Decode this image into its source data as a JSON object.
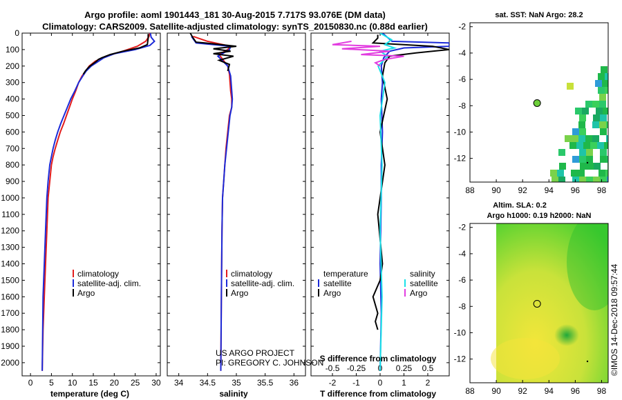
{
  "header": {
    "title_line1": "Argo profile: aoml 1901443_181 30-Aug-2015 7.717S 93.076E (DM data)",
    "title_line2": "Climatology: CARS2009. Satellite-adjusted climatology: synTS_20150830.nc (0.88d earlier)"
  },
  "credits": {
    "project": "US ARGO PROJECT",
    "pi": "PI: GREGORY C. JOHNSON",
    "stamp": "©IMOS 14-Dec-2018 09:57:44"
  },
  "colors": {
    "climatology": "#e21b1b",
    "satellite": "#1b2ad8",
    "argo": "#000000",
    "sal_satellite": "#19e0e8",
    "sal_argo": "#e23ce0"
  },
  "chart_data": [
    {
      "id": "temperature",
      "type": "line",
      "xlabel": "temperature (deg C)",
      "ylabel": "",
      "xlim": [
        -2,
        31
      ],
      "ylim": [
        2080,
        0
      ],
      "xticks": [
        0,
        5,
        10,
        15,
        20,
        25,
        30
      ],
      "yticks": [
        0,
        100,
        200,
        300,
        400,
        500,
        600,
        700,
        800,
        900,
        1000,
        1100,
        1200,
        1300,
        1400,
        1500,
        1600,
        1700,
        1800,
        1900,
        2000
      ],
      "legend": [
        "climatology",
        "satellite-adj. clim.",
        "Argo"
      ],
      "series": [
        {
          "name": "climatology",
          "color": "#e21b1b",
          "x": [
            28.5,
            28.3,
            27.5,
            25.5,
            22,
            18,
            15.5,
            14,
            13.2,
            12.3,
            11.5,
            10.8,
            10,
            9.3,
            8.6,
            7.9,
            7.1,
            6.5,
            5.9,
            5.4,
            5,
            4.6,
            4.2,
            3.9,
            3.6,
            3.3,
            3.0,
            2.8
          ],
          "y": [
            0,
            20,
            50,
            80,
            110,
            140,
            170,
            200,
            230,
            260,
            300,
            350,
            400,
            450,
            500,
            550,
            600,
            650,
            700,
            750,
            800,
            900,
            1000,
            1200,
            1400,
            1600,
            1800,
            2050
          ]
        },
        {
          "name": "satellite",
          "color": "#1b2ad8",
          "x": [
            28.6,
            28.8,
            29.6,
            28.5,
            25,
            20,
            17.5,
            16,
            14.5,
            13.3,
            12.5,
            11.5,
            10.6,
            9.6,
            8.8,
            8,
            7.2,
            6.5,
            5.9,
            5.4,
            5,
            4.6,
            4.2,
            3.9,
            3.6,
            3.3,
            3.0,
            2.8
          ],
          "y": [
            0,
            25,
            50,
            75,
            100,
            125,
            150,
            175,
            200,
            230,
            260,
            300,
            350,
            400,
            450,
            500,
            550,
            600,
            650,
            700,
            750,
            800,
            900,
            1000,
            1200,
            1400,
            1600,
            2050
          ]
        },
        {
          "name": "Argo",
          "color": "#000000",
          "x": [
            28.1,
            28.1,
            27.9,
            26,
            22,
            19,
            17,
            16.2,
            15.8,
            15,
            14.2,
            13.6,
            13.1,
            12.6
          ],
          "y": [
            5,
            30,
            70,
            90,
            110,
            130,
            150,
            160,
            170,
            185,
            200,
            215,
            230,
            250
          ]
        }
      ]
    },
    {
      "id": "salinity",
      "type": "line",
      "xlabel": "salinity",
      "xlim": [
        33.8,
        36.2
      ],
      "ylim": [
        2080,
        0
      ],
      "xticks": [
        34,
        34.5,
        35,
        35.5,
        36
      ],
      "legend": [
        "climatology",
        "satellite-adj. clim.",
        "Argo"
      ],
      "series": [
        {
          "name": "climatology",
          "color": "#e21b1b",
          "x": [
            34.25,
            34.5,
            34.9,
            34.85,
            34.7,
            34.85,
            34.88,
            34.9,
            34.92,
            34.92,
            34.88,
            34.85,
            34.82,
            34.8,
            34.78,
            34.76,
            34.75,
            34.74,
            34.73
          ],
          "y": [
            20,
            50,
            80,
            100,
            130,
            200,
            250,
            350,
            400,
            450,
            500,
            600,
            700,
            800,
            900,
            1000,
            1200,
            1600,
            2050
          ]
        },
        {
          "name": "satellite",
          "color": "#1b2ad8",
          "x": [
            34.22,
            34.3,
            34.9,
            34.88,
            34.68,
            34.85,
            34.9,
            34.92,
            34.93,
            34.92,
            34.89,
            34.86,
            34.83,
            34.8,
            34.78,
            34.76,
            34.75,
            34.74,
            34.73
          ],
          "y": [
            20,
            60,
            80,
            100,
            140,
            200,
            260,
            350,
            400,
            450,
            500,
            600,
            700,
            800,
            900,
            1000,
            1200,
            1600,
            2050
          ]
        },
        {
          "name": "Argo",
          "color": "#000000",
          "x": [
            34.2,
            34.25,
            34.3,
            34.45,
            35.0,
            34.6,
            34.9,
            34.6,
            34.95,
            34.7,
            34.88,
            34.85
          ],
          "y": [
            0,
            30,
            55,
            60,
            80,
            95,
            110,
            125,
            140,
            165,
            190,
            230
          ]
        }
      ]
    },
    {
      "id": "differences",
      "type": "line",
      "xlabel": "T difference from climatology",
      "xlabel_top": "S difference from climatology",
      "xlim": [
        -2.9,
        2.9
      ],
      "ylim": [
        2080,
        0
      ],
      "xticks": [
        -2,
        -1,
        0,
        1,
        2
      ],
      "xticks_salinity": [
        -0.5,
        -0.25,
        0,
        0.25,
        0.5
      ],
      "legend_temperature_heading": "temperature",
      "legend_salinity_heading": "salinity",
      "legend_temperature": [
        "satellite",
        "Argo"
      ],
      "legend_salinity": [
        "satellite",
        "Argo"
      ],
      "series": [
        {
          "name": "T satellite",
          "color": "#1b2ad8",
          "x": [
            0.1,
            0.5,
            2.9,
            2.9,
            1,
            0.4,
            0.15,
            0.05,
            0.1,
            0.05,
            0.1,
            0.05,
            0.05,
            0.0,
            0.05,
            0.0
          ],
          "y": [
            0,
            50,
            60,
            80,
            90,
            110,
            150,
            200,
            300,
            400,
            600,
            800,
            1000,
            1400,
            1700,
            2050
          ]
        },
        {
          "name": "T Argo",
          "color": "#000000",
          "x": [
            -0.1,
            -0.1,
            -0.3,
            2.2,
            2.9,
            1.5,
            0.4,
            0.2,
            0.1,
            0.3,
            0.0,
            0.2,
            -0.1,
            0.1,
            0.0,
            -0.3,
            -0.1,
            -0.2,
            -0.1
          ],
          "y": [
            10,
            30,
            60,
            80,
            100,
            120,
            140,
            180,
            260,
            400,
            600,
            800,
            1100,
            1400,
            1500,
            1600,
            1700,
            1750,
            1800
          ]
        },
        {
          "name": "S satellite",
          "color": "#19e0e8",
          "x": [
            0.0,
            0.12,
            0.05,
            0.15,
            0.0,
            0.08,
            -0.02,
            0.05,
            0.0,
            0.02,
            0.0,
            0.02,
            0.0
          ],
          "y": [
            0,
            40,
            70,
            90,
            110,
            140,
            200,
            300,
            500,
            800,
            1200,
            1600,
            2050
          ]
        },
        {
          "name": "S Argo",
          "color": "#e23ce0",
          "x": [
            -0.3,
            -0.5,
            0.0,
            -0.4,
            0.1,
            -0.2,
            0.25,
            0.05,
            -0.05,
            0.0
          ],
          "y": [
            50,
            70,
            80,
            95,
            110,
            130,
            140,
            160,
            180,
            200
          ]
        }
      ]
    },
    {
      "id": "sst_map",
      "type": "heatmap",
      "title": "sat. SST: NaN Argo: 28.2",
      "xlim": [
        88,
        98.5
      ],
      "ylim": [
        -13.8,
        -1.7
      ],
      "xticks": [
        88,
        90,
        92,
        94,
        96,
        98
      ],
      "yticks": [
        -2,
        -4,
        -6,
        -8,
        -10,
        -12
      ],
      "argo_position": [
        93.1,
        -7.8
      ]
    },
    {
      "id": "sla_map",
      "type": "heatmap",
      "title_line1": "Altim. SLA: 0.2",
      "title_line2": "Argo h1000: 0.19 h2000: NaN",
      "xlim": [
        88,
        98.5
      ],
      "ylim": [
        -13.8,
        -1.7
      ],
      "xticks": [
        88,
        90,
        92,
        94,
        96,
        98
      ],
      "yticks": [
        -2,
        -4,
        -6,
        -8,
        -10,
        -12
      ],
      "argo_position": [
        93.1,
        -7.8
      ]
    }
  ]
}
